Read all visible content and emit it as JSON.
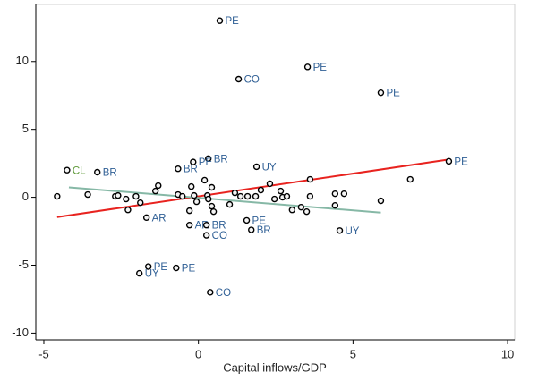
{
  "chart_data": {
    "type": "scatter",
    "x_label": "Capital inflows/GDP",
    "xlim": [
      -5.26,
      10.23
    ],
    "ylim": [
      -10.5,
      14.2
    ],
    "xticks": [
      -5,
      0,
      5,
      10
    ],
    "yticks": [
      -10,
      -5,
      0,
      5,
      10
    ],
    "grid": false,
    "marker_color": "#000000",
    "x": [
      0.69,
      3.53,
      1.3,
      5.9,
      8.1,
      -4.25,
      -3.27,
      0.32,
      -0.17,
      -0.66,
      1.88,
      -1.68,
      -0.29,
      0.26,
      0.26,
      1.56,
      1.71,
      4.57,
      -1.62,
      -1.91,
      -0.72,
      0.38,
      -4.57,
      -3.58,
      -2.69,
      -2.6,
      -2.34,
      -2.28,
      -2.02,
      -1.88,
      -1.39,
      -1.3,
      -0.66,
      -0.52,
      -0.29,
      -0.23,
      -0.14,
      -0.06,
      0.2,
      0.29,
      0.32,
      0.43,
      0.43,
      0.49,
      1.01,
      1.18,
      1.36,
      1.59,
      1.85,
      2.02,
      2.31,
      2.46,
      2.66,
      2.72,
      2.86,
      3.03,
      3.32,
      3.5,
      3.61,
      3.61,
      4.42,
      4.42,
      4.71,
      5.9,
      6.85
    ],
    "values": [
      13.0,
      9.6,
      8.7,
      7.7,
      2.65,
      2.0,
      1.85,
      2.85,
      2.6,
      2.1,
      2.25,
      -1.5,
      -2.05,
      -2.05,
      -2.8,
      -1.7,
      -2.4,
      -2.45,
      -5.1,
      -5.6,
      -5.2,
      -7.0,
      0.07,
      0.2,
      0.07,
      0.13,
      -0.13,
      -0.93,
      0.07,
      -0.4,
      0.46,
      0.86,
      0.2,
      0.07,
      -0.99,
      0.79,
      0.13,
      -0.33,
      1.26,
      0.13,
      -0.13,
      0.73,
      -0.66,
      -1.06,
      -0.53,
      0.33,
      0.07,
      0.07,
      0.07,
      0.53,
      1.0,
      -0.13,
      0.46,
      0.0,
      0.07,
      -0.93,
      -0.73,
      -1.06,
      1.32,
      0.07,
      0.26,
      -0.6,
      0.26,
      -0.26,
      1.32
    ],
    "labels": [
      "PE",
      "PE",
      "CO",
      "PE",
      "PE",
      "CL",
      "BR",
      "BR",
      "PE",
      "BR",
      "UY",
      "AR",
      "AR",
      "BR",
      "CO",
      "PE",
      "BR",
      "UY",
      "PE",
      "UY",
      "PE",
      "CO",
      null,
      null,
      null,
      null,
      null,
      null,
      null,
      null,
      null,
      null,
      null,
      null,
      null,
      null,
      null,
      null,
      null,
      null,
      null,
      null,
      null,
      null,
      null,
      null,
      null,
      null,
      null,
      null,
      null,
      null,
      null,
      null,
      null,
      null,
      null,
      null,
      null,
      null,
      null,
      null,
      null,
      null,
      null
    ],
    "label_colors": [
      "#2f5f95",
      "#2f5f95",
      "#2f5f95",
      "#2f5f95",
      "#2f5f95",
      "#5f9a3a",
      "#2f5f95",
      "#2f5f95",
      "#2f5f95",
      "#2f5f95",
      "#2f5f95",
      "#2f5f95",
      "#2f5f95",
      "#2f5f95",
      "#2f5f95",
      "#2f5f95",
      "#2f5f95",
      "#2f5f95",
      "#2f5f95",
      "#2f5f95",
      "#2f5f95",
      "#2f5f95",
      null,
      null,
      null,
      null,
      null,
      null,
      null,
      null,
      null,
      null,
      null,
      null,
      null,
      null,
      null,
      null,
      null,
      null,
      null,
      null,
      null,
      null,
      null,
      null,
      null,
      null,
      null,
      null,
      null,
      null,
      null,
      null,
      null,
      null,
      null,
      null,
      null,
      null,
      null,
      null,
      null,
      null,
      null
    ],
    "lines": [
      {
        "color": "#e8231f",
        "x": [
          -4.57,
          8.09
        ],
        "y": [
          -1.46,
          2.78
        ]
      },
      {
        "color": "#86b8a6",
        "x": [
          -4.19,
          5.9
        ],
        "y": [
          0.73,
          -1.13
        ]
      }
    ]
  }
}
